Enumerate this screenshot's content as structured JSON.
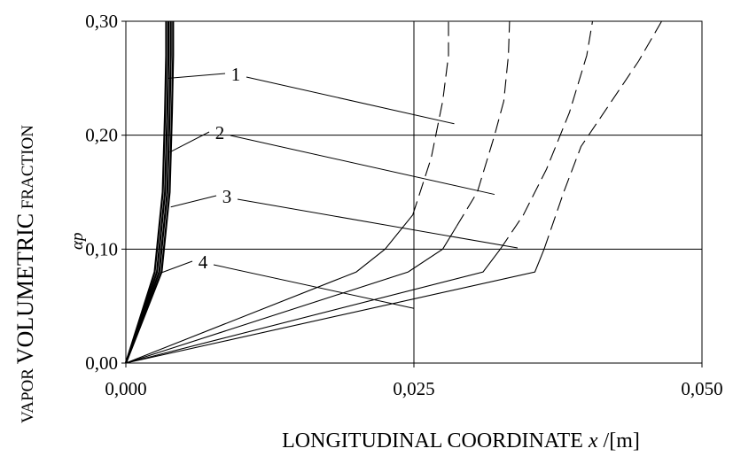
{
  "chart_data": {
    "type": "line",
    "xlabel": {
      "prefix": "LONGITUDINAL COORDINATE ",
      "variable": "x",
      "unit": " /[m]"
    },
    "ylabel": {
      "small1": "VAPOR ",
      "big": "VOLUMETRIC",
      "small2": " FRACTION",
      "symbol": "αp"
    },
    "xlim": [
      0,
      0.05
    ],
    "ylim": [
      0,
      0.3
    ],
    "x_ticks": [
      {
        "value": 0,
        "label": "0,000"
      },
      {
        "value": 0.025,
        "label": "0,025"
      },
      {
        "value": 0.05,
        "label": "0,050"
      }
    ],
    "y_ticks": [
      {
        "value": 0,
        "label": "0,00"
      },
      {
        "value": 0.1,
        "label": "0,10"
      },
      {
        "value": 0.2,
        "label": "0,20"
      },
      {
        "value": 0.3,
        "label": "0,30"
      }
    ],
    "grid": true,
    "series": [
      {
        "name": "1",
        "style": "solid",
        "group": "steep",
        "x": [
          0,
          0.0025,
          0.0032,
          0.0034,
          0.0035,
          0.0035
        ],
        "y": [
          0,
          0.08,
          0.15,
          0.22,
          0.27,
          0.3
        ]
      },
      {
        "name": "2",
        "style": "solid",
        "group": "steep",
        "x": [
          0,
          0.0027,
          0.0034,
          0.0036,
          0.0037,
          0.0037
        ],
        "y": [
          0,
          0.08,
          0.15,
          0.22,
          0.27,
          0.3
        ]
      },
      {
        "name": "3",
        "style": "solid",
        "group": "steep",
        "x": [
          0,
          0.0029,
          0.0036,
          0.0038,
          0.0039,
          0.0039
        ],
        "y": [
          0,
          0.08,
          0.15,
          0.22,
          0.27,
          0.3
        ]
      },
      {
        "name": "4",
        "style": "solid",
        "group": "steep",
        "x": [
          0,
          0.0031,
          0.0038,
          0.004,
          0.0041,
          0.0041
        ],
        "y": [
          0,
          0.08,
          0.15,
          0.22,
          0.27,
          0.3
        ]
      },
      {
        "name": "1",
        "style": "solid-then-dashed",
        "group": "flat",
        "x_break": 0.0249,
        "x": [
          0,
          0.02,
          0.0225,
          0.0249,
          0.0265,
          0.0275,
          0.028,
          0.028
        ],
        "y": [
          0,
          0.08,
          0.1,
          0.13,
          0.18,
          0.23,
          0.27,
          0.3
        ]
      },
      {
        "name": "2",
        "style": "solid-then-dashed",
        "group": "flat",
        "x_break": 0.0287,
        "x": [
          0,
          0.0245,
          0.0275,
          0.0287,
          0.0305,
          0.032,
          0.0328,
          0.0332,
          0.0333
        ],
        "y": [
          0,
          0.08,
          0.1,
          0.12,
          0.15,
          0.2,
          0.23,
          0.27,
          0.3
        ]
      },
      {
        "name": "3",
        "style": "solid-then-dashed",
        "group": "flat",
        "x_break": 0.0325,
        "x": [
          0,
          0.031,
          0.0325,
          0.0345,
          0.0365,
          0.0385,
          0.04,
          0.0405
        ],
        "y": [
          0,
          0.08,
          0.1,
          0.13,
          0.17,
          0.22,
          0.27,
          0.3
        ]
      },
      {
        "name": "4",
        "style": "solid-then-dashed",
        "group": "flat",
        "x_break": 0.0363,
        "x": [
          0,
          0.0355,
          0.0363,
          0.038,
          0.0395,
          0.0415,
          0.0445,
          0.0465
        ],
        "y": [
          0,
          0.08,
          0.1,
          0.15,
          0.19,
          0.22,
          0.265,
          0.3
        ]
      }
    ],
    "annotations": [
      {
        "label": "1",
        "steep_target": [
          0.0037,
          0.25
        ],
        "flat_target": [
          0.0285,
          0.21
        ]
      },
      {
        "label": "2",
        "steep_target": [
          0.0038,
          0.185
        ],
        "flat_target": [
          0.032,
          0.148
        ]
      },
      {
        "label": "3",
        "steep_target": [
          0.0039,
          0.137
        ],
        "flat_target": [
          0.034,
          0.101
        ]
      },
      {
        "label": "4",
        "steep_target": [
          0.003,
          0.079
        ],
        "flat_target": [
          0.025,
          0.048
        ]
      }
    ]
  }
}
